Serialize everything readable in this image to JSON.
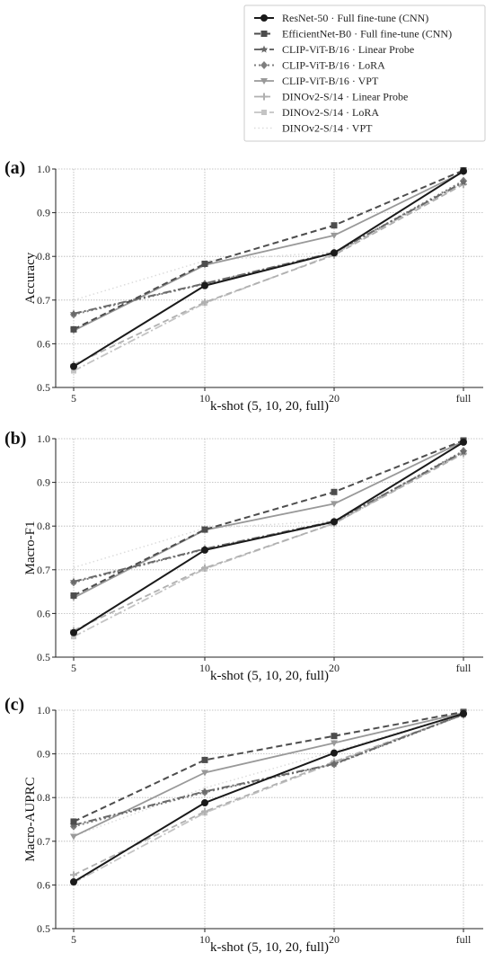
{
  "legend": [
    {
      "name": "ResNet-50 · Full fine-tune (CNN)",
      "color": "#1a1a1a",
      "dash": "",
      "marker": "circle",
      "width": 2
    },
    {
      "name": "EfficientNet-B0 · Full fine-tune (CNN)",
      "color": "#4d4d4d",
      "dash": "7,4",
      "marker": "square",
      "width": 2
    },
    {
      "name": "CLIP-ViT-B/16 · Linear Probe",
      "color": "#6a6a6a",
      "dash": "9,3,2,3",
      "marker": "star",
      "width": 2
    },
    {
      "name": "CLIP-ViT-B/16 · LoRA",
      "color": "#7f7f7f",
      "dash": "2,3",
      "marker": "diamond",
      "width": 2
    },
    {
      "name": "CLIP-ViT-B/16 · VPT",
      "color": "#999999",
      "dash": "",
      "marker": "triangle-down",
      "width": 1.8
    },
    {
      "name": "DINOv2-S/14 · Linear Probe",
      "color": "#b0b0b0",
      "dash": "7,4",
      "marker": "plus",
      "width": 1.8
    },
    {
      "name": "DINOv2-S/14 · LoRA",
      "color": "#c4c4c4",
      "dash": "9,3,2,3",
      "marker": "square-small",
      "width": 1.8
    },
    {
      "name": "DINOv2-S/14 · VPT",
      "color": "#dcdcdc",
      "dash": "1.5,3",
      "marker": "none",
      "width": 1.5
    }
  ],
  "chart_data": [
    {
      "tag": "(a)",
      "type": "line",
      "categories": [
        "5",
        "10",
        "20",
        "full"
      ],
      "xlabel": "k-shot (5, 10, 20, full)",
      "ylabel": "Accuracy",
      "ylim": [
        0.5,
        1.0
      ],
      "yticks": [
        "0.5",
        "0.6",
        "0.7",
        "0.8",
        "0.9",
        "1.0"
      ],
      "grid": true,
      "series": [
        {
          "name": "ResNet-50 · Full fine-tune (CNN)",
          "values": [
            0.548,
            0.733,
            0.808,
            0.995
          ]
        },
        {
          "name": "EfficientNet-B0 · Full fine-tune (CNN)",
          "values": [
            0.633,
            0.783,
            0.871,
            0.997
          ]
        },
        {
          "name": "CLIP-ViT-B/16 · Linear Probe",
          "values": [
            0.669,
            0.738,
            0.809,
            0.97
          ]
        },
        {
          "name": "CLIP-ViT-B/16 · LoRA",
          "values": [
            0.667,
            0.737,
            0.808,
            0.973
          ]
        },
        {
          "name": "CLIP-ViT-B/16 · VPT",
          "values": [
            0.63,
            0.78,
            0.848,
            0.993
          ]
        },
        {
          "name": "DINOv2-S/14 · Linear Probe",
          "values": [
            0.552,
            0.695,
            0.803,
            0.965
          ]
        },
        {
          "name": "DINOv2-S/14 · LoRA",
          "values": [
            0.538,
            0.693,
            0.805,
            0.968
          ]
        },
        {
          "name": "DINOv2-S/14 · VPT",
          "values": [
            0.7,
            0.79,
            0.81,
            0.968
          ]
        }
      ]
    },
    {
      "tag": "(b)",
      "type": "line",
      "categories": [
        "5",
        "10",
        "20",
        "full"
      ],
      "xlabel": "k-shot (5, 10, 20, full)",
      "ylabel": "Macro-F1",
      "ylim": [
        0.5,
        1.0
      ],
      "yticks": [
        "0.5",
        "0.6",
        "0.7",
        "0.8",
        "0.9",
        "1.0"
      ],
      "grid": true,
      "series": [
        {
          "name": "ResNet-50 · Full fine-tune (CNN)",
          "values": [
            0.556,
            0.745,
            0.81,
            0.992
          ]
        },
        {
          "name": "EfficientNet-B0 · Full fine-tune (CNN)",
          "values": [
            0.641,
            0.792,
            0.878,
            0.996
          ]
        },
        {
          "name": "CLIP-ViT-B/16 · Linear Probe",
          "values": [
            0.673,
            0.748,
            0.811,
            0.97
          ]
        },
        {
          "name": "CLIP-ViT-B/16 · LoRA",
          "values": [
            0.671,
            0.747,
            0.809,
            0.972
          ]
        },
        {
          "name": "CLIP-ViT-B/16 · VPT",
          "values": [
            0.636,
            0.791,
            0.851,
            0.994
          ]
        },
        {
          "name": "DINOv2-S/14 · Linear Probe",
          "values": [
            0.561,
            0.704,
            0.806,
            0.966
          ]
        },
        {
          "name": "DINOv2-S/14 · LoRA",
          "values": [
            0.547,
            0.702,
            0.806,
            0.968
          ]
        },
        {
          "name": "DINOv2-S/14 · VPT",
          "values": [
            0.705,
            0.795,
            0.812,
            0.969
          ]
        }
      ]
    },
    {
      "tag": "(c)",
      "type": "line",
      "categories": [
        "5",
        "10",
        "20",
        "full"
      ],
      "xlabel": "k-shot (5, 10, 20, full)",
      "ylabel": "Macro-AUPRC",
      "ylim": [
        0.5,
        1.0
      ],
      "yticks": [
        "0.5",
        "0.6",
        "0.7",
        "0.8",
        "0.9",
        "1.0"
      ],
      "grid": true,
      "series": [
        {
          "name": "ResNet-50 · Full fine-tune (CNN)",
          "values": [
            0.607,
            0.788,
            0.902,
            0.992
          ]
        },
        {
          "name": "EfficientNet-B0 · Full fine-tune (CNN)",
          "values": [
            0.745,
            0.886,
            0.941,
            0.996
          ]
        },
        {
          "name": "CLIP-ViT-B/16 · Linear Probe",
          "values": [
            0.737,
            0.814,
            0.877,
            0.991
          ]
        },
        {
          "name": "CLIP-ViT-B/16 · LoRA",
          "values": [
            0.734,
            0.812,
            0.876,
            0.99
          ]
        },
        {
          "name": "CLIP-ViT-B/16 · VPT",
          "values": [
            0.711,
            0.857,
            0.925,
            0.994
          ]
        },
        {
          "name": "DINOv2-S/14 · Linear Probe",
          "values": [
            0.623,
            0.768,
            0.882,
            0.99
          ]
        },
        {
          "name": "DINOv2-S/14 · LoRA",
          "values": [
            0.605,
            0.765,
            0.88,
            0.989
          ]
        },
        {
          "name": "DINOv2-S/14 · VPT",
          "values": [
            0.712,
            0.822,
            0.906,
            0.993
          ]
        }
      ]
    }
  ]
}
